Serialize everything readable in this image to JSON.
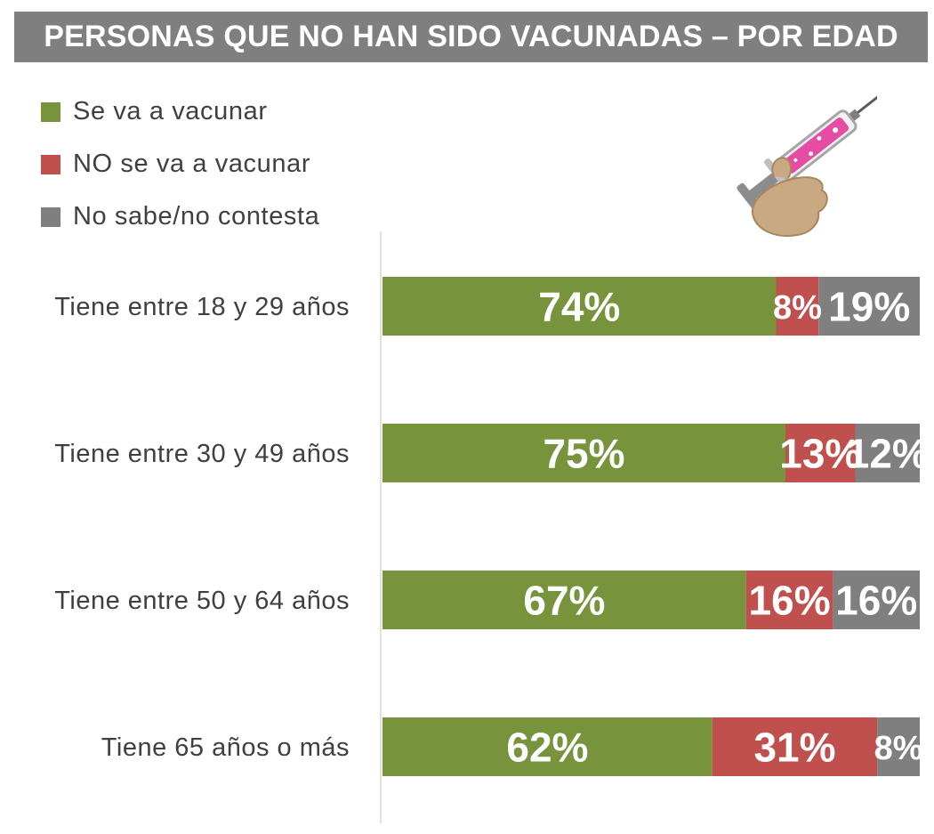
{
  "header": {
    "title": "PERSONAS QUE NO HAN SIDO VACUNADAS – POR EDAD"
  },
  "legend": [
    {
      "label": "Se va a vacunar",
      "color": "#77933c"
    },
    {
      "label": "NO se va a vacunar",
      "color": "#c0504d"
    },
    {
      "label": "No sabe/no contesta",
      "color": "#7f7f7f"
    }
  ],
  "chart_data": {
    "type": "bar",
    "orientation": "horizontal",
    "stacked": true,
    "title": "PERSONAS QUE NO HAN SIDO VACUNADAS – POR EDAD",
    "categories": [
      "Tiene entre 18 y 29 años",
      "Tiene entre 30 y 49 años",
      "Tiene entre 50 y 64 años",
      "Tiene 65 años o más"
    ],
    "series": [
      {
        "name": "Se va a vacunar",
        "values": [
          74,
          75,
          67,
          62
        ],
        "labels": [
          "74%",
          "75%",
          "67%",
          "62%"
        ],
        "color": "#77933c"
      },
      {
        "name": "NO se va a vacunar",
        "values": [
          8,
          13,
          16,
          31
        ],
        "labels": [
          "8%",
          "13%",
          "16%",
          "31%"
        ],
        "color": "#c0504d"
      },
      {
        "name": "No sabe/no contesta",
        "values": [
          19,
          12,
          16,
          8
        ],
        "labels": [
          "19%",
          "12%",
          "16%",
          "8%"
        ],
        "color": "#7f7f7f"
      }
    ],
    "unit": "%",
    "legend_position": "top-left",
    "grid": false
  },
  "decoration": {
    "icon": "syringe-icon"
  }
}
